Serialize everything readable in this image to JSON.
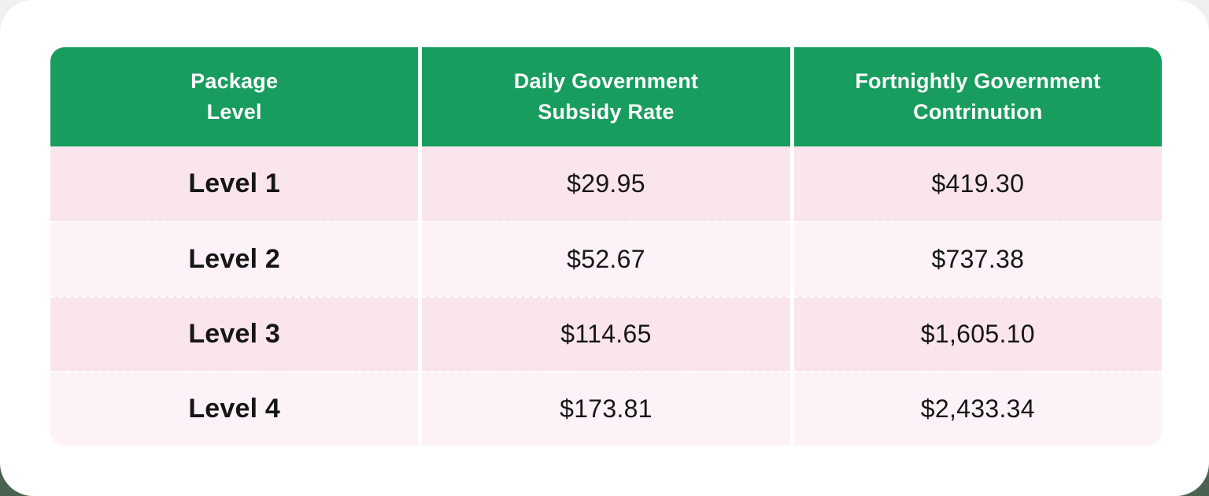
{
  "colors": {
    "header_green": "#189d5e",
    "row_pink_dark": "#fae5ec",
    "row_pink_light": "#fdf2f7",
    "card_white": "#ffffff",
    "backdrop_dark_green": "#4a6350",
    "backdrop_light": "#eff1ef",
    "text_dark": "#161616"
  },
  "table": {
    "headers": [
      {
        "line1": "Package",
        "line2": "Level"
      },
      {
        "line1": "Daily Government",
        "line2": "Subsidy Rate"
      },
      {
        "line1": "Fortnightly Government",
        "line2": "Contrinution"
      }
    ],
    "rows": [
      {
        "level": "Level 1",
        "daily": "$29.95",
        "fortnightly": "$419.30"
      },
      {
        "level": "Level 2",
        "daily": "$52.67",
        "fortnightly": "$737.38"
      },
      {
        "level": "Level 3",
        "daily": "$114.65",
        "fortnightly": "$1,605.10"
      },
      {
        "level": "Level 4",
        "daily": "$173.81",
        "fortnightly": "$2,433.34"
      }
    ]
  },
  "chart_data": {
    "type": "table",
    "title": "",
    "columns": [
      "Package Level",
      "Daily Government Subsidy Rate",
      "Fortnightly Government Contrinution"
    ],
    "rows": [
      [
        "Level 1",
        "$29.95",
        "$419.30"
      ],
      [
        "Level 2",
        "$52.67",
        "$737.38"
      ],
      [
        "Level 3",
        "$114.65",
        "$1,605.10"
      ],
      [
        "Level 4",
        "$173.81",
        "$2,433.34"
      ]
    ],
    "numeric": {
      "daily_subsidy_rate": [
        29.95,
        52.67,
        114.65,
        173.81
      ],
      "fortnightly_contribution": [
        419.3,
        737.38,
        1605.1,
        2433.34
      ]
    }
  }
}
